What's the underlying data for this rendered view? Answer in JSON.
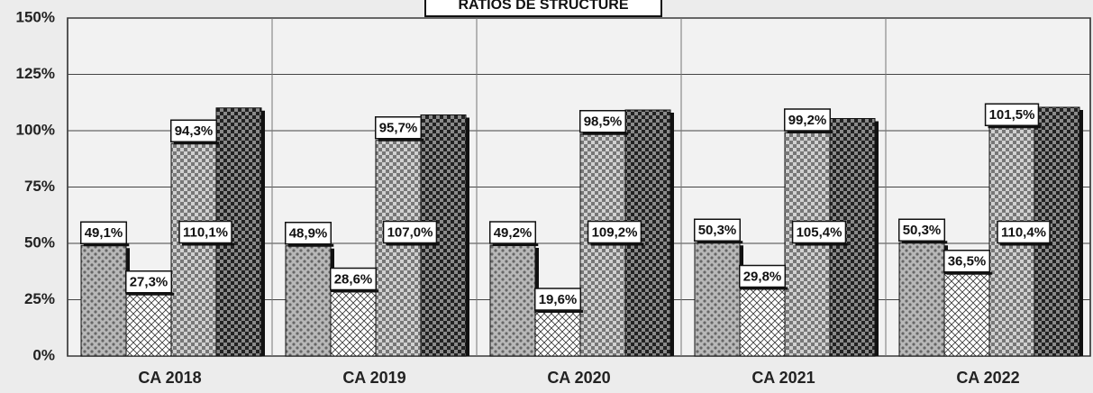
{
  "chart_data": {
    "type": "bar",
    "title": "RATIOS DE STRUCTURE",
    "categories": [
      "CA 2018",
      "CA 2019",
      "CA 2020",
      "CA 2021",
      "CA 2022"
    ],
    "series": [
      {
        "color": "#b8b8b8",
        "values": [
          49.1,
          48.9,
          49.2,
          50.3,
          50.3
        ],
        "value_labels": [
          "49,1%",
          "48,9%",
          "49,2%",
          "50,3%",
          "50,3%"
        ]
      },
      {
        "color": "#ffffff",
        "values": [
          27.3,
          28.6,
          19.6,
          29.8,
          36.5
        ],
        "value_labels": [
          "27,3%",
          "28,6%",
          "19,6%",
          "29,8%",
          "36,5%"
        ]
      },
      {
        "color": "#d0d0d0",
        "values": [
          94.3,
          95.7,
          98.5,
          99.2,
          101.5
        ],
        "value_labels": [
          "94,3%",
          "95,7%",
          "98,5%",
          "99,2%",
          "101,5%"
        ]
      },
      {
        "color": "#8a8a8a",
        "values": [
          110.1,
          107.0,
          109.2,
          105.4,
          110.4
        ],
        "value_labels": [
          "110,1%",
          "107,0%",
          "109,2%",
          "105,4%",
          "110,4%"
        ]
      }
    ],
    "ylim": [
      0,
      150
    ],
    "yticks": [
      {
        "value": 0,
        "label": "0%"
      },
      {
        "value": 25,
        "label": "25%"
      },
      {
        "value": 50,
        "label": "50%"
      },
      {
        "value": 75,
        "label": "75%"
      },
      {
        "value": 100,
        "label": "100%"
      },
      {
        "value": 125,
        "label": "125%"
      },
      {
        "value": 150,
        "label": "150%"
      }
    ],
    "grid": true
  }
}
